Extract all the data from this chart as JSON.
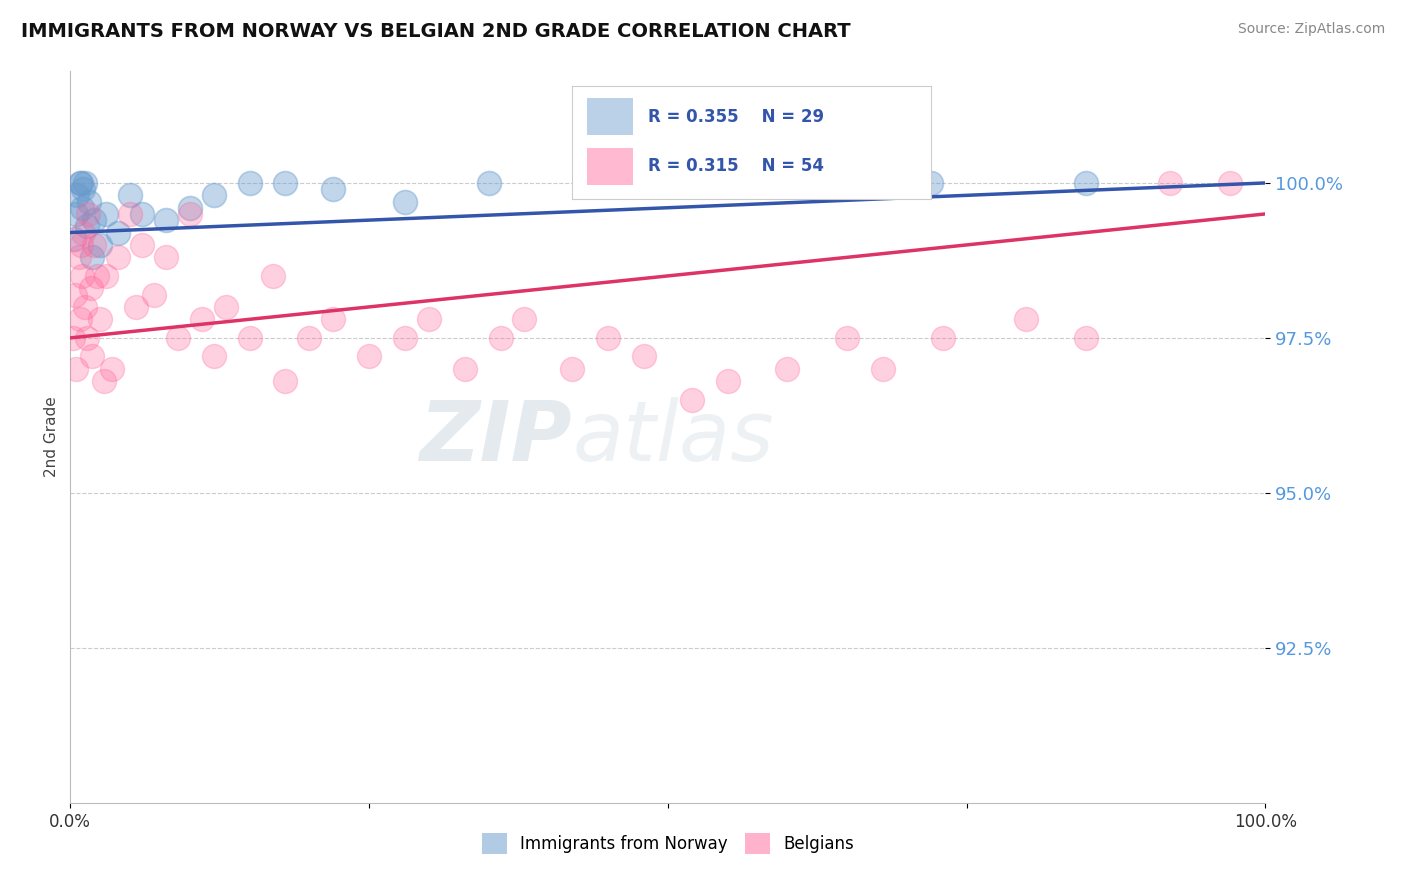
{
  "title": "IMMIGRANTS FROM NORWAY VS BELGIAN 2ND GRADE CORRELATION CHART",
  "source": "Source: ZipAtlas.com",
  "ylabel": "2nd Grade",
  "xlim": [
    0.0,
    100.0
  ],
  "ylim": [
    90.0,
    101.8
  ],
  "yticks": [
    92.5,
    95.0,
    97.5,
    100.0
  ],
  "ytick_labels": [
    "92.5%",
    "95.0%",
    "97.5%",
    "100.0%"
  ],
  "legend_norway": "Immigrants from Norway",
  "legend_belgians": "Belgians",
  "R_norway": 0.355,
  "N_norway": 29,
  "R_belgians": 0.315,
  "N_belgians": 54,
  "color_norway": "#6699CC",
  "color_belgians": "#FF6699",
  "norway_x": [
    0.3,
    0.5,
    0.6,
    0.8,
    0.9,
    1.0,
    1.1,
    1.2,
    1.4,
    1.6,
    1.8,
    2.0,
    2.5,
    3.0,
    4.0,
    5.0,
    6.0,
    8.0,
    10.0,
    12.0,
    15.0,
    18.0,
    22.0,
    28.0,
    35.0,
    45.0,
    55.0,
    72.0,
    85.0
  ],
  "norway_y": [
    99.1,
    99.5,
    99.8,
    100.0,
    100.0,
    99.6,
    99.9,
    100.0,
    99.3,
    99.7,
    98.8,
    99.4,
    99.0,
    99.5,
    99.2,
    99.8,
    99.5,
    99.4,
    99.6,
    99.8,
    100.0,
    100.0,
    99.9,
    99.7,
    100.0,
    100.0,
    100.0,
    100.0,
    100.0
  ],
  "belgians_x": [
    0.2,
    0.4,
    0.5,
    0.7,
    0.8,
    0.9,
    1.0,
    1.1,
    1.2,
    1.4,
    1.5,
    1.7,
    1.8,
    2.0,
    2.2,
    2.5,
    2.8,
    3.0,
    3.5,
    4.0,
    5.0,
    5.5,
    6.0,
    7.0,
    8.0,
    9.0,
    10.0,
    11.0,
    12.0,
    13.0,
    15.0,
    17.0,
    18.0,
    20.0,
    22.0,
    25.0,
    28.0,
    30.0,
    33.0,
    36.0,
    38.0,
    42.0,
    45.0,
    48.0,
    52.0,
    55.0,
    60.0,
    65.0,
    68.0,
    73.0,
    80.0,
    85.0,
    92.0,
    97.0
  ],
  "belgians_y": [
    97.5,
    98.2,
    97.0,
    98.8,
    97.8,
    99.0,
    98.5,
    99.2,
    98.0,
    97.5,
    99.5,
    98.3,
    97.2,
    99.0,
    98.5,
    97.8,
    96.8,
    98.5,
    97.0,
    98.8,
    99.5,
    98.0,
    99.0,
    98.2,
    98.8,
    97.5,
    99.5,
    97.8,
    97.2,
    98.0,
    97.5,
    98.5,
    96.8,
    97.5,
    97.8,
    97.2,
    97.5,
    97.8,
    97.0,
    97.5,
    97.8,
    97.0,
    97.5,
    97.2,
    96.5,
    96.8,
    97.0,
    97.5,
    97.0,
    97.5,
    97.8,
    97.5,
    100.0,
    100.0
  ],
  "line_norway_x0": 0.0,
  "line_norway_y0": 99.2,
  "line_norway_x1": 100.0,
  "line_norway_y1": 100.0,
  "line_belgians_x0": 0.0,
  "line_belgians_y0": 97.5,
  "line_belgians_x1": 100.0,
  "line_belgians_y1": 99.5
}
